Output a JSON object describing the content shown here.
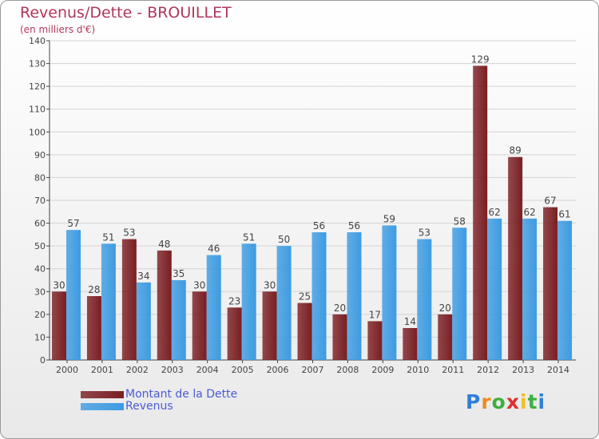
{
  "chart_data": {
    "type": "bar",
    "title": "Revenus/Dette - BROUILLET",
    "subtitle": "(en milliers d'€)",
    "categories": [
      "2000",
      "2001",
      "2002",
      "2003",
      "2004",
      "2005",
      "2006",
      "2007",
      "2008",
      "2009",
      "2010",
      "2011",
      "2012",
      "2013",
      "2014"
    ],
    "series": [
      {
        "name": "Montant de la Dette",
        "color": "#7a1e22",
        "values": [
          30,
          28,
          53,
          48,
          30,
          23,
          30,
          25,
          20,
          17,
          14,
          20,
          129,
          89,
          67
        ]
      },
      {
        "name": "Revenus",
        "color": "#3d9be2",
        "values": [
          57,
          51,
          34,
          35,
          46,
          51,
          50,
          56,
          56,
          59,
          53,
          58,
          62,
          62,
          61
        ]
      }
    ],
    "yticks": [
      "0",
      "10",
      "20",
      "30",
      "40",
      "50",
      "60",
      "70",
      "80",
      "90",
      "100",
      "110",
      "120",
      "130",
      "140"
    ],
    "ylim": [
      0,
      140
    ],
    "grid": true,
    "legend_position": "bottom-left"
  },
  "logo": {
    "letters": [
      "P",
      "r",
      "o",
      "x",
      "i",
      "t",
      "i"
    ],
    "colors": [
      "#2f7fd8",
      "#f08a1e",
      "#3faf3f",
      "#e03030",
      "#f0c020",
      "#3faf3f",
      "#2f7fd8"
    ]
  }
}
